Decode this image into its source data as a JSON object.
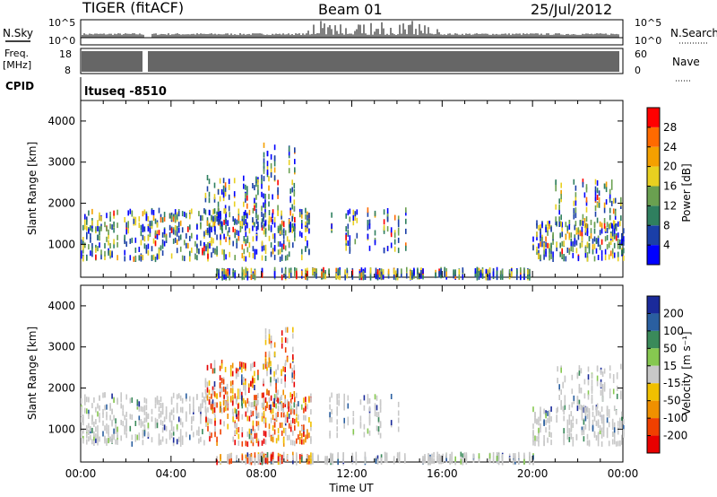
{
  "header": {
    "title": "TIGER (fitACF)",
    "beam": "Beam 01",
    "date": "25/Jul/2012"
  },
  "noise_panel": {
    "left_label": "N.Sky",
    "left_ticks": [
      "10^5",
      "10^0"
    ],
    "right_label": "N.Search",
    "right_ticks": [
      "10^5",
      "10^0"
    ]
  },
  "freq_panel": {
    "left_label_1": "Freq.",
    "left_label_2": "[MHz]",
    "left_ticks": [
      "18",
      "8"
    ],
    "right_label": "Nave",
    "right_ticks": [
      "60",
      "0"
    ]
  },
  "cpid_panel": {
    "label": "CPID",
    "value": "ltuseq -8510"
  },
  "colors": {
    "power_scale": [
      "#0000ff",
      "#1a3fa8",
      "#2f7f5f",
      "#6aa050",
      "#e8d020",
      "#f4a000",
      "#ff6a00",
      "#ff0000"
    ],
    "velocity_scale": [
      "#1a2a9a",
      "#2a5fa0",
      "#3a8a5a",
      "#86c850",
      "#c8c8c8",
      "#f0c000",
      "#f09000",
      "#f04000",
      "#e80000"
    ]
  },
  "chart_data": [
    {
      "type": "heatmap",
      "name": "power",
      "ylabel": "Slant Range [km]",
      "yticks": [
        1000,
        2000,
        3000,
        4000
      ],
      "ylim": [
        200,
        4500
      ],
      "xlim_hours": [
        0,
        24
      ],
      "colorbar_label": "Power [dB]",
      "colorbar_ticks": [
        4,
        8,
        12,
        16,
        20,
        24,
        28
      ],
      "colorbar_range": [
        0,
        32
      ]
    },
    {
      "type": "heatmap",
      "name": "velocity",
      "ylabel": "Slant Range [km]",
      "yticks": [
        1000,
        2000,
        3000,
        4000
      ],
      "ylim": [
        200,
        4500
      ],
      "xlim_hours": [
        0,
        24
      ],
      "colorbar_label": "Velocity [m s⁻¹]",
      "colorbar_ticks": [
        200,
        100,
        50,
        15,
        -15,
        -50,
        -100,
        -200
      ]
    }
  ],
  "time_axis": {
    "label": "Time UT",
    "ticks": [
      "00:00",
      "04:00",
      "08:00",
      "12:00",
      "16:00",
      "20:00",
      "00:00"
    ]
  }
}
